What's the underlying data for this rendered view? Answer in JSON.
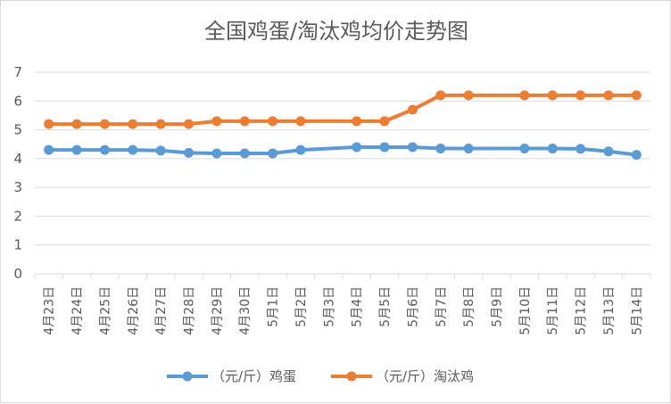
{
  "chart_data": {
    "type": "line",
    "title": "全国鸡蛋/淘汰鸡均价走势图",
    "categories": [
      "4月23日",
      "4月24日",
      "4月25日",
      "4月26日",
      "4月27日",
      "4月28日",
      "4月29日",
      "4月30日",
      "5月1日",
      "5月2日",
      "5月3日",
      "5月4日",
      "5月5日",
      "5月6日",
      "5月7日",
      "5月8日",
      "5月9日",
      "5月10日",
      "5月11日",
      "5月12日",
      "5月13日",
      "5月14日"
    ],
    "ylim": [
      0,
      7
    ],
    "yticks": [
      0,
      1,
      2,
      3,
      4,
      5,
      6,
      7
    ],
    "grid": true,
    "legend_position": "bottom",
    "series": [
      {
        "name": "（元/斤）鸡蛋",
        "color": "#5b9bd5",
        "values": [
          4.3,
          4.3,
          4.3,
          4.3,
          4.28,
          4.2,
          4.18,
          4.18,
          4.18,
          4.3,
          null,
          4.4,
          4.4,
          4.4,
          4.35,
          4.35,
          null,
          4.35,
          4.35,
          4.34,
          4.25,
          4.13
        ]
      },
      {
        "name": "（元/斤）淘汰鸡",
        "color": "#ed7d31",
        "values": [
          5.2,
          5.2,
          5.2,
          5.2,
          5.2,
          5.2,
          5.3,
          5.3,
          5.3,
          5.3,
          null,
          5.3,
          5.3,
          5.7,
          6.2,
          6.2,
          null,
          6.2,
          6.2,
          6.2,
          6.2,
          6.2
        ]
      }
    ]
  }
}
